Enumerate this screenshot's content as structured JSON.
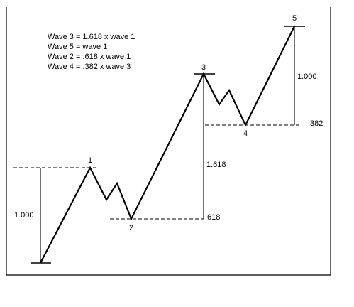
{
  "notes": [
    "Wave 3 = 1.618 x wave 1",
    "Wave 5 = wave 1",
    "Wave 2 = .618 x wave 1",
    "Wave 4 = .382 x wave 3"
  ],
  "wave_labels": {
    "w1": "1",
    "w2": "2",
    "w3": "3",
    "w4": "4",
    "w5": "5"
  },
  "measurements": {
    "wave1_length": "1.000",
    "wave3_length": "1.618",
    "wave2_retrace": ".618",
    "wave5_length": "1.000",
    "wave4_retrace": ".382"
  },
  "colors": {
    "line": "#000000",
    "background": "#ffffff"
  }
}
